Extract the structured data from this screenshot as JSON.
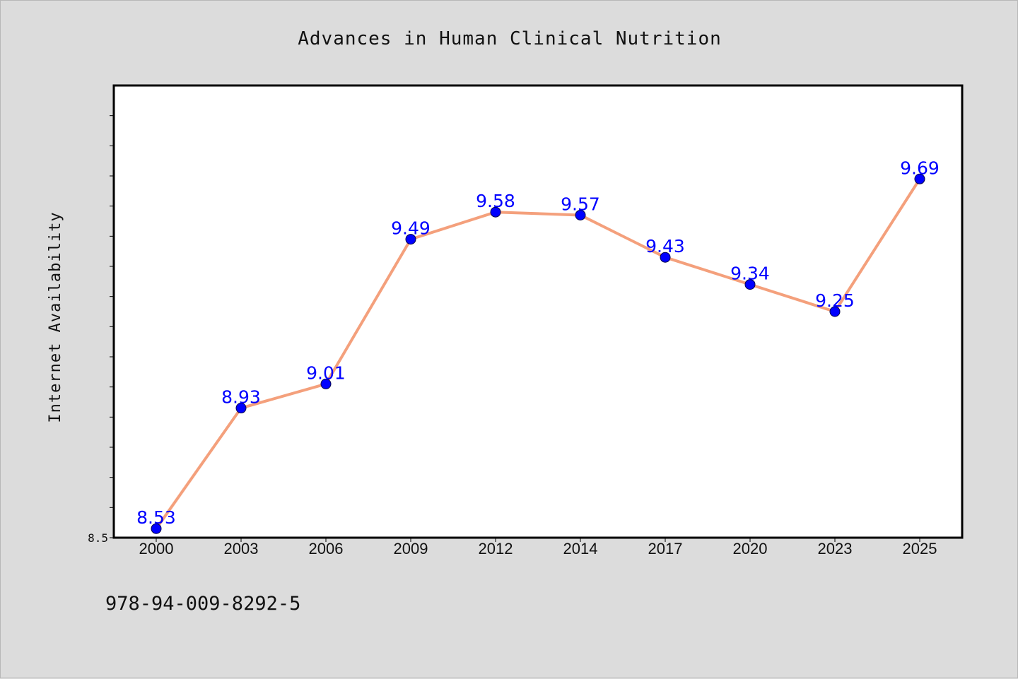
{
  "chart_data": {
    "type": "line",
    "title": "Advances in Human Clinical Nutrition",
    "xlabel": "",
    "ylabel": "Internet Availability",
    "categories": [
      "2000",
      "2003",
      "2006",
      "2009",
      "2012",
      "2014",
      "2017",
      "2020",
      "2023",
      "2025"
    ],
    "series": [
      {
        "values": [
          8.53,
          8.93,
          9.01,
          9.49,
          9.58,
          9.57,
          9.43,
          9.34,
          9.25,
          9.69
        ],
        "data_labels": [
          "8.53",
          "8.93",
          "9.01",
          "9.49",
          "9.58",
          "9.57",
          "9.43",
          "9.34",
          "9.25",
          "9.69"
        ]
      }
    ],
    "y_tick_labels": [
      "8.5"
    ],
    "ylim": [
      8.5,
      10.0
    ],
    "grid": false,
    "colors": {
      "line": "#f4a07c",
      "marker": "#0000ff",
      "data_label": "#0000ff",
      "background": "#dcdcdc",
      "plot_background": "#ffffff"
    }
  },
  "footer": {
    "isbn": "978-94-009-8292-5"
  }
}
